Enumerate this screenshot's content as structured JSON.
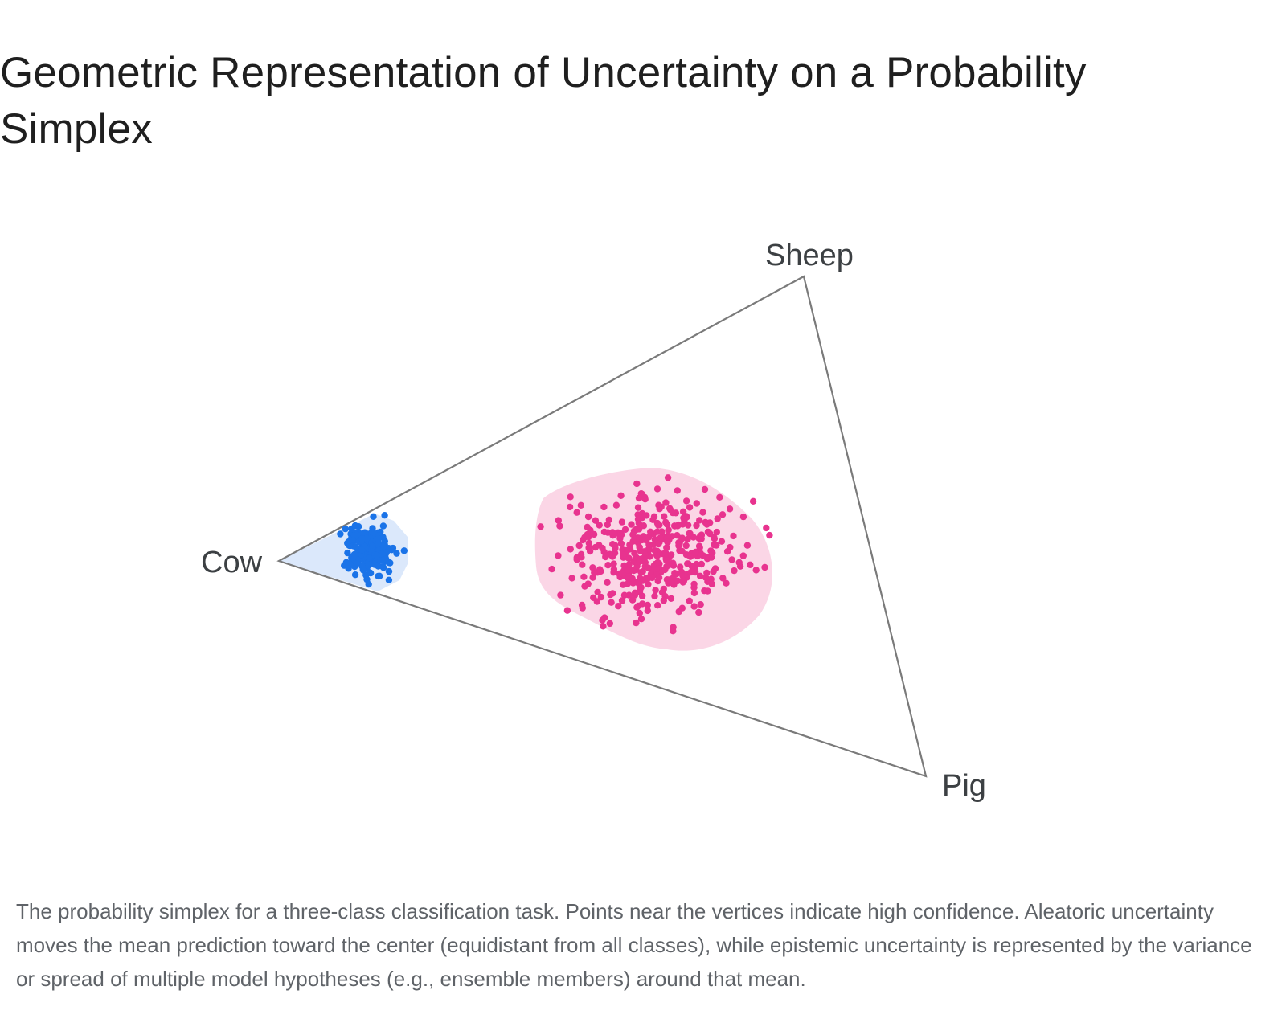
{
  "title": "Geometric Representation of Uncertainty on a Probability Simplex",
  "caption": "The probability simplex for a three-class classification task. Points near the vertices indicate high confidence. Aleatoric uncertainty moves the mean prediction toward the center (equidistant from all classes), while epistemic uncertainty is represented by the variance or spread of multiple model hypotheses (e.g., ensemble members) around that mean.",
  "simplex": {
    "vertices": {
      "sheep": "Sheep",
      "cow": "Cow",
      "pig": "Pig"
    },
    "edge_color": "#7a7a7a"
  },
  "clusters": [
    {
      "id": "confident",
      "color": "#1a73e8",
      "hull_color": "#dbe8fb"
    },
    {
      "id": "uncertain",
      "color": "#e8338f",
      "hull_color": "#fbd6e6"
    }
  ]
}
